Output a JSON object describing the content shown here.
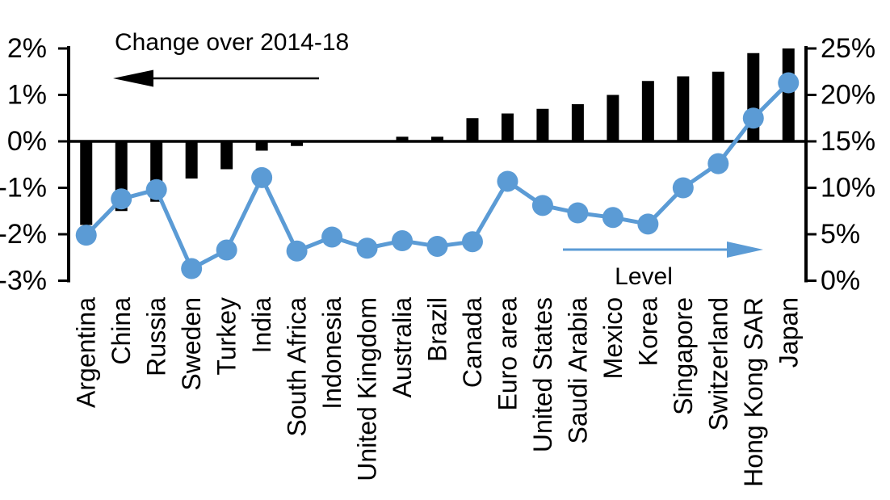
{
  "chart_data": {
    "type": "bar",
    "subtype": "combo-bar-line-dual-axis",
    "title": "",
    "categories": [
      "Argentina",
      "China",
      "Russia",
      "Sweden",
      "Turkey",
      "India",
      "South Africa",
      "Indonesia",
      "United Kingdom",
      "Australia",
      "Brazil",
      "Canada",
      "Euro area",
      "United States",
      "Saudi Arabia",
      "Mexico",
      "Korea",
      "Singapore",
      "Switzerland",
      "Hong Kong SAR",
      "Japan"
    ],
    "series": [
      {
        "name": "Change over 2014-18",
        "type": "bar",
        "axis": "left",
        "color": "#000000",
        "values": [
          -1.8,
          -1.5,
          -1.3,
          -0.8,
          -0.6,
          -0.2,
          -0.1,
          0.0,
          0.0,
          0.1,
          0.1,
          0.5,
          0.6,
          0.7,
          0.8,
          1.0,
          1.3,
          1.4,
          1.5,
          1.9,
          2.0
        ]
      },
      {
        "name": "Level",
        "type": "line",
        "axis": "right",
        "color": "#5B9BD5",
        "values": [
          4.9,
          8.8,
          9.8,
          1.3,
          3.3,
          11.1,
          3.2,
          4.7,
          3.5,
          4.3,
          3.7,
          4.2,
          10.7,
          8.1,
          7.3,
          6.8,
          6.1,
          10.0,
          12.6,
          17.5,
          21.3
        ]
      }
    ],
    "left_axis": {
      "range": [
        -3,
        2
      ],
      "ticks": [
        {
          "value": 2,
          "label": "2%"
        },
        {
          "value": 1,
          "label": "1%"
        },
        {
          "value": 0,
          "label": "0%"
        },
        {
          "value": -1,
          "label": "-1%"
        },
        {
          "value": -2,
          "label": "-2%"
        },
        {
          "value": -3,
          "label": "-3%"
        }
      ]
    },
    "right_axis": {
      "range": [
        0,
        25
      ],
      "ticks": [
        {
          "value": 25,
          "label": "25%"
        },
        {
          "value": 20,
          "label": "20%"
        },
        {
          "value": 15,
          "label": "15%"
        },
        {
          "value": 10,
          "label": "10%"
        },
        {
          "value": 5,
          "label": "5%"
        },
        {
          "value": 0,
          "label": "0%"
        }
      ]
    },
    "annotations": {
      "bar_label": {
        "text": "Change over 2014-18",
        "arrow_direction": "left",
        "arrow_color": "#000000",
        "text_color": "#000000"
      },
      "line_label": {
        "text": "Level",
        "arrow_direction": "right",
        "arrow_color": "#5B9BD5",
        "text_color": "#000000"
      }
    },
    "grid": "off",
    "legend": "in-plot annotations with arrows",
    "zero_line": true
  }
}
